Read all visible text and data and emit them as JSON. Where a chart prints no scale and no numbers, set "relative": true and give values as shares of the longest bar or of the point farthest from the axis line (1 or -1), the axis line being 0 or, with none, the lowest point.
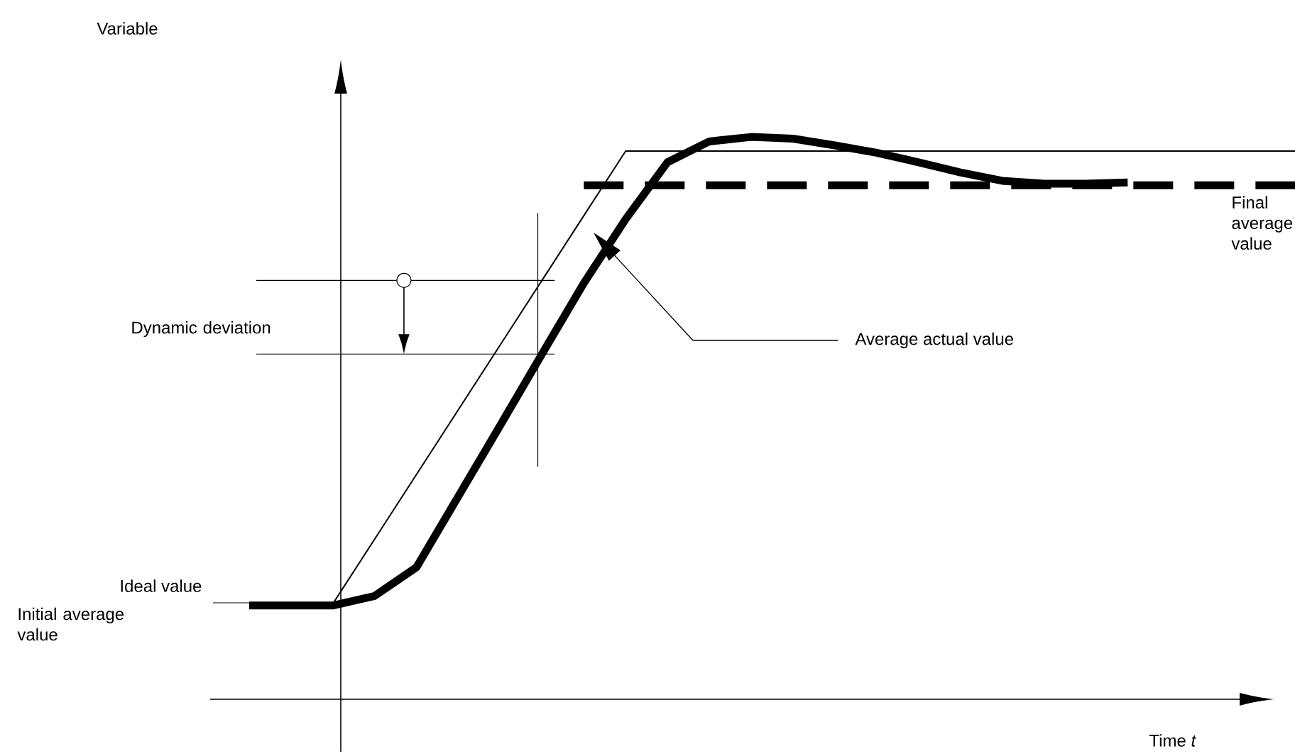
{
  "chart_data": {
    "type": "line",
    "relative": true,
    "xlabel": "Time  *t*",
    "legend": false,
    "marker": "none",
    "categories": [
      null,
      null,
      null,
      null,
      null,
      null,
      null,
      null,
      null,
      null,
      null,
      null,
      null,
      null,
      null,
      null,
      null,
      null,
      null,
      null,
      null,
      null,
      null,
      null,
      null,
      null
    ],
    "series": [
      {
        "name": "Ideal value",
        "color": "#000000",
        "line_style": "solid",
        "values": [
          null,
          null,
          0.17,
          0.285,
          0.4,
          0.515,
          0.63,
          0.745,
          0.86,
          0.975,
          0.975,
          0.975,
          0.975,
          0.975,
          0.975,
          0.975,
          0.975,
          0.975,
          0.975,
          0.975,
          0.975,
          0.975,
          0.975,
          0.975,
          0.975,
          0.975
        ]
      },
      {
        "name": "Average actual value",
        "color": "#000000",
        "line_style": "solid",
        "values": [
          0.167,
          0.167,
          0.167,
          0.184,
          0.235,
          0.361,
          0.487,
          0.614,
          0.74,
          0.854,
          0.955,
          0.992,
          1.0,
          0.997,
          0.985,
          0.972,
          0.955,
          0.937,
          0.922,
          0.917,
          0.917,
          0.919,
          null,
          null,
          null,
          null
        ]
      },
      {
        "name": "Final average value",
        "color": "#000000",
        "line_style": "dashed",
        "values": [
          null,
          null,
          null,
          null,
          null,
          null,
          null,
          null,
          0.914,
          0.914,
          0.914,
          0.914,
          0.914,
          0.914,
          0.914,
          0.914,
          0.914,
          0.914,
          0.914,
          0.914,
          0.914,
          0.914,
          0.914,
          0.914,
          0.914,
          0.914
        ]
      }
    ],
    "annotations": [
      "Variable",
      "Initial average value",
      "Dynamic deviation"
    ]
  }
}
